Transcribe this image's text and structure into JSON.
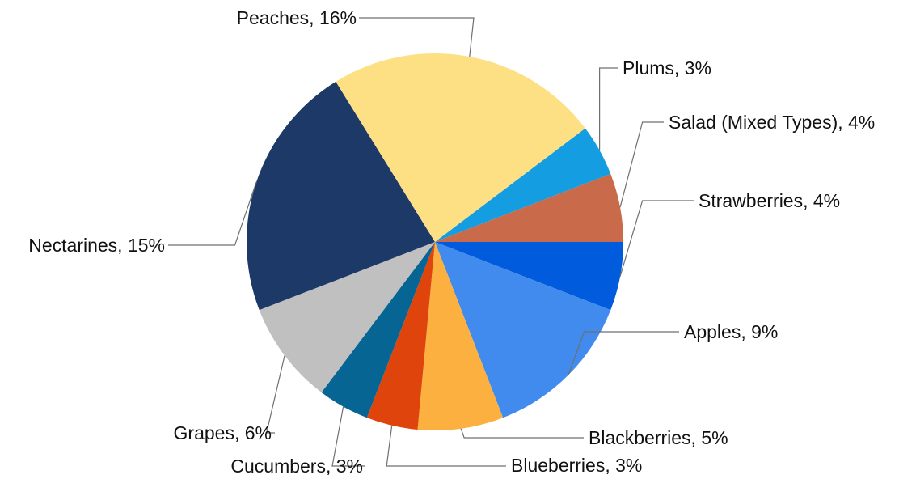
{
  "chart_data": {
    "type": "pie",
    "title": "",
    "slices": [
      {
        "name": "Strawberries",
        "value": 4,
        "label": "Strawberries, 4%",
        "color": "#005CDC"
      },
      {
        "name": "Apples",
        "value": 9,
        "label": "Apples, 9%",
        "color": "#418AEE"
      },
      {
        "name": "Blackberries",
        "value": 5,
        "label": "Blackberries, 5%",
        "color": "#FBB040"
      },
      {
        "name": "Blueberries",
        "value": 3,
        "label": "Blueberries, 3%",
        "color": "#E0440D"
      },
      {
        "name": "Cucumbers",
        "value": 3,
        "label": "Cucumbers, 3%",
        "color": "#066593"
      },
      {
        "name": "Grapes",
        "value": 6,
        "label": "Grapes, 6%",
        "color": "#C0C0C0"
      },
      {
        "name": "Nectarines",
        "value": 15,
        "label": "Nectarines, 15%",
        "color": "#1D3968"
      },
      {
        "name": "Peaches",
        "value": 16,
        "label": "Peaches, 16%",
        "color": "#FEE084"
      },
      {
        "name": "Plums",
        "value": 3,
        "label": "Plums, 3%",
        "color": "#159DE1"
      },
      {
        "name": "Salad (Mixed Types)",
        "value": 4,
        "label": "Salad (Mixed Types), 4%",
        "color": "#C96B4B"
      }
    ],
    "start": "3 o'clock",
    "direction": "clockwise",
    "label_style": "outside with leader lines",
    "legend": "none"
  }
}
